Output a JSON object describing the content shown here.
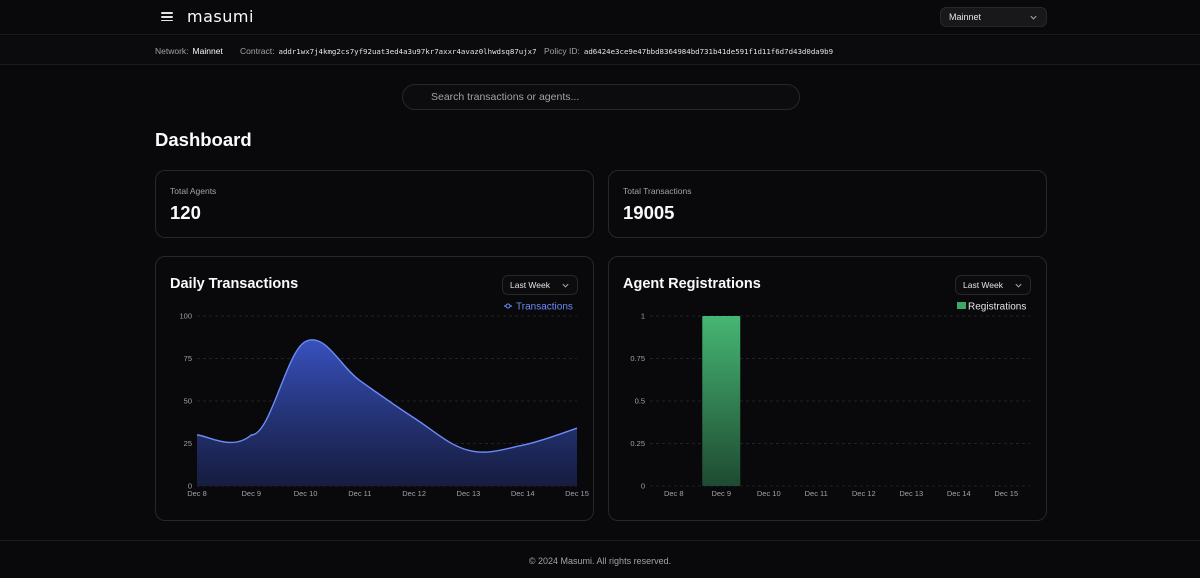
{
  "app": {
    "logo_text": "masumi",
    "network_select": {
      "value": "Mainnet"
    }
  },
  "info_bar": {
    "network_label": "Network:",
    "network_value": "Mainnet",
    "contract_label": "Contract:",
    "contract_value": "addr1wx7j4kmg2cs7yf92uat3ed4a3u97kr7axxr4avaz0lhwdsq87ujx7",
    "policy_label": "Policy ID:",
    "policy_value": "ad6424e3ce9e47bbd8364984bd731b41de591f1d11f6d7d43d0da9b9"
  },
  "search": {
    "placeholder": "Search transactions or agents..."
  },
  "page_title": "Dashboard",
  "stats": [
    {
      "label": "Total Agents",
      "value": "120"
    },
    {
      "label": "Total Transactions",
      "value": "19005"
    }
  ],
  "colors": {
    "transactions": "#6b8cf7",
    "registrations": "#3ea86a",
    "background": "#09090b"
  },
  "chart_data": [
    {
      "type": "area",
      "title": "Daily Transactions",
      "range_select": "Last Week",
      "legend": "Transactions",
      "x": [
        "Dec 8",
        "Dec 9",
        "Dec 10",
        "Dec 11",
        "Dec 12",
        "Dec 13",
        "Dec 14",
        "Dec 15"
      ],
      "series": [
        {
          "name": "Transactions",
          "values": [
            30,
            30,
            85,
            62,
            40,
            21,
            24,
            34
          ]
        }
      ],
      "y_ticks": [
        "0",
        "25",
        "50",
        "75",
        "100"
      ],
      "ylim": [
        0,
        100
      ],
      "grid": true
    },
    {
      "type": "bar",
      "title": "Agent Registrations",
      "range_select": "Last Week",
      "legend": "Registrations",
      "categories": [
        "Dec 8",
        "Dec 9",
        "Dec 10",
        "Dec 11",
        "Dec 12",
        "Dec 13",
        "Dec 14",
        "Dec 15"
      ],
      "series": [
        {
          "name": "Registrations",
          "values": [
            0,
            1,
            0,
            0,
            0,
            0,
            0,
            0
          ]
        }
      ],
      "y_ticks": [
        "0",
        "0.25",
        "0.5",
        "0.75",
        "1"
      ],
      "ylim": [
        0,
        1
      ],
      "grid": true
    }
  ],
  "footer": {
    "text": "© 2024 Masumi. All rights reserved."
  }
}
